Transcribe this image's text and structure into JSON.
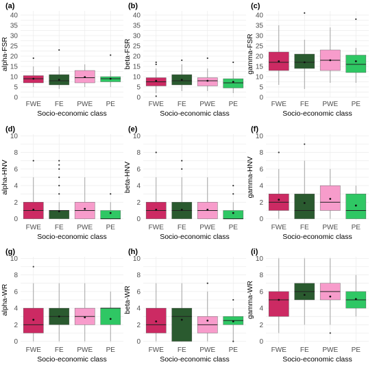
{
  "chart_data": [
    {
      "type": "box",
      "panel": "(a)",
      "ylabel": "alpha-FSR",
      "xlabel": "Socio-economic class",
      "ylim": [
        0,
        42
      ],
      "yticks": [
        0,
        5,
        10,
        15,
        20,
        25,
        30,
        35,
        40
      ],
      "categories": [
        "FWE",
        "FE",
        "PWE",
        "PE"
      ],
      "boxes": [
        {
          "min": 5,
          "q1": 7,
          "median": 9,
          "q3": 10.5,
          "max": 15,
          "mean": 9,
          "outliers": [
            19
          ]
        },
        {
          "min": 4,
          "q1": 6,
          "median": 8,
          "q3": 11,
          "max": 15,
          "mean": 8.5,
          "outliers": [
            23
          ]
        },
        {
          "min": 5,
          "q1": 7,
          "median": 9.5,
          "q3": 13,
          "max": 16,
          "mean": 9.8,
          "outliers": []
        },
        {
          "min": 5,
          "q1": 7.5,
          "median": 9,
          "q3": 10,
          "max": 13,
          "mean": 9,
          "outliers": [
            20.5
          ]
        }
      ]
    },
    {
      "type": "box",
      "panel": "(b)",
      "ylabel": "beta-FSR",
      "xlabel": "Socio-economic class",
      "ylim": [
        0,
        42
      ],
      "yticks": [
        0,
        5,
        10,
        15,
        20,
        25,
        30,
        35,
        40
      ],
      "categories": [
        "FWE",
        "FE",
        "PWE",
        "PE"
      ],
      "boxes": [
        {
          "min": 2,
          "q1": 5.5,
          "median": 7.5,
          "q3": 9.5,
          "max": 14,
          "mean": 8,
          "outliers": [
            0.5,
            16,
            17
          ]
        },
        {
          "min": 3,
          "q1": 6,
          "median": 8,
          "q3": 11,
          "max": 16,
          "mean": 8.5,
          "outliers": [
            18
          ]
        },
        {
          "min": 3,
          "q1": 5.5,
          "median": 8,
          "q3": 9.5,
          "max": 14,
          "mean": 8,
          "outliers": [
            19
          ]
        },
        {
          "min": 2,
          "q1": 4.5,
          "median": 7,
          "q3": 9,
          "max": 13,
          "mean": 7.5,
          "outliers": [
            17
          ]
        }
      ]
    },
    {
      "type": "box",
      "panel": "(c)",
      "ylabel": "gamma-FSR",
      "xlabel": "Socio-economic class",
      "ylim": [
        0,
        42
      ],
      "yticks": [
        0,
        5,
        10,
        15,
        20,
        25,
        30,
        35,
        40
      ],
      "categories": [
        "FWE",
        "FE",
        "PWE",
        "PE"
      ],
      "boxes": [
        {
          "min": 6,
          "q1": 13,
          "median": 17,
          "q3": 22,
          "max": 35,
          "mean": 17.5,
          "outliers": []
        },
        {
          "min": 4,
          "q1": 14,
          "median": 17,
          "q3": 21,
          "max": 28,
          "mean": 17,
          "outliers": [
            41
          ]
        },
        {
          "min": 7,
          "q1": 13,
          "median": 18,
          "q3": 23,
          "max": 34,
          "mean": 18,
          "outliers": []
        },
        {
          "min": 7,
          "q1": 12,
          "median": 16,
          "q3": 20.5,
          "max": 24,
          "mean": 17.5,
          "outliers": [
            38
          ]
        }
      ]
    },
    {
      "type": "box",
      "panel": "(d)",
      "ylabel": "alpha-HNV",
      "xlabel": "Socio-economic class",
      "ylim": [
        -0.2,
        10.2
      ],
      "yticks": [
        0,
        2,
        4,
        6,
        8,
        10
      ],
      "categories": [
        "FWE",
        "FE",
        "PWE",
        "PE"
      ],
      "boxes": [
        {
          "min": 0,
          "q1": 0,
          "median": 1,
          "q3": 2,
          "max": 5,
          "mean": 1.1,
          "outliers": [
            7
          ]
        },
        {
          "min": 0,
          "q1": 0,
          "median": 1,
          "q3": 1,
          "max": 2,
          "mean": 0.9,
          "outliers": [
            3,
            4,
            5,
            6,
            6.5,
            7
          ]
        },
        {
          "min": 0,
          "q1": 0,
          "median": 1,
          "q3": 2,
          "max": 5,
          "mean": 1.2,
          "outliers": []
        },
        {
          "min": 0,
          "q1": 0,
          "median": 0,
          "q3": 1,
          "max": 2,
          "mean": 0.7,
          "outliers": [
            3
          ]
        }
      ]
    },
    {
      "type": "box",
      "panel": "(e)",
      "ylabel": "beta-HNV",
      "xlabel": "Socio-economic class",
      "ylim": [
        -0.2,
        10.2
      ],
      "yticks": [
        0,
        2,
        4,
        6,
        8,
        10
      ],
      "categories": [
        "FWE",
        "FE",
        "PWE",
        "PE"
      ],
      "boxes": [
        {
          "min": 0,
          "q1": 0,
          "median": 1,
          "q3": 2,
          "max": 5,
          "mean": 1.1,
          "outliers": [
            8
          ]
        },
        {
          "min": 0,
          "q1": 0,
          "median": 1,
          "q3": 2,
          "max": 5,
          "mean": 1.1,
          "outliers": [
            6,
            7
          ]
        },
        {
          "min": 0,
          "q1": 0,
          "median": 1,
          "q3": 2,
          "max": 5,
          "mean": 1.1,
          "outliers": []
        },
        {
          "min": 0,
          "q1": 0,
          "median": 0,
          "q3": 1,
          "max": 2,
          "mean": 0.7,
          "outliers": [
            3,
            4
          ]
        }
      ]
    },
    {
      "type": "box",
      "panel": "(f)",
      "ylabel": "gamma-HNV",
      "xlabel": "Socio-economic class",
      "ylim": [
        -0.2,
        10.2
      ],
      "yticks": [
        0,
        2,
        4,
        6,
        8,
        10
      ],
      "categories": [
        "FWE",
        "FE",
        "PWE",
        "PE"
      ],
      "boxes": [
        {
          "min": 0,
          "q1": 1,
          "median": 2,
          "q3": 3,
          "max": 6,
          "mean": 2.3,
          "outliers": [
            8
          ]
        },
        {
          "min": 0,
          "q1": 0,
          "median": 1,
          "q3": 3,
          "max": 7,
          "mean": 1.9,
          "outliers": [
            9
          ]
        },
        {
          "min": 0,
          "q1": 1,
          "median": 2,
          "q3": 4,
          "max": 6,
          "mean": 2.4,
          "outliers": []
        },
        {
          "min": 0,
          "q1": 0,
          "median": 1,
          "q3": 3,
          "max": 4,
          "mean": 1.6,
          "outliers": []
        }
      ]
    },
    {
      "type": "box",
      "panel": "(g)",
      "ylabel": "alpha-WR",
      "xlabel": "Socio-economic class",
      "ylim": [
        -0.2,
        10.2
      ],
      "yticks": [
        0,
        2,
        4,
        6,
        8,
        10
      ],
      "categories": [
        "FWE",
        "FE",
        "PWE",
        "PE"
      ],
      "boxes": [
        {
          "min": 0,
          "q1": 1,
          "median": 2,
          "q3": 4,
          "max": 7,
          "mean": 2.6,
          "outliers": [
            9
          ]
        },
        {
          "min": 0,
          "q1": 2,
          "median": 3,
          "q3": 4,
          "max": 7,
          "mean": 3,
          "outliers": []
        },
        {
          "min": 0,
          "q1": 2,
          "median": 3,
          "q3": 4,
          "max": 7,
          "mean": 2.9,
          "outliers": []
        },
        {
          "min": 0,
          "q1": 2,
          "median": 4,
          "q3": 4,
          "max": 6,
          "mean": 2.7,
          "outliers": []
        }
      ]
    },
    {
      "type": "box",
      "panel": "(h)",
      "ylabel": "beta-WR",
      "xlabel": "Socio-economic class",
      "ylim": [
        -0.2,
        10.2
      ],
      "yticks": [
        0,
        2,
        4,
        6,
        8,
        10
      ],
      "categories": [
        "FWE",
        "FE",
        "PWE",
        "PE"
      ],
      "boxes": [
        {
          "min": 0,
          "q1": 1,
          "median": 2,
          "q3": 4,
          "max": 7,
          "mean": 2.4,
          "outliers": []
        },
        {
          "min": 0,
          "q1": 0,
          "median": 3,
          "q3": 4,
          "max": 7,
          "mean": 2.6,
          "outliers": []
        },
        {
          "min": 0,
          "q1": 1,
          "median": 2,
          "q3": 3,
          "max": 6,
          "mean": 2.5,
          "outliers": [
            7
          ]
        },
        {
          "min": 0,
          "q1": 2,
          "median": 2.5,
          "q3": 3,
          "max": 4,
          "mean": 2.4,
          "outliers": [
            0,
            5
          ]
        }
      ]
    },
    {
      "type": "box",
      "panel": "(i)",
      "ylabel": "gamma-WR",
      "xlabel": "Socio-economic class",
      "ylim": [
        -0.2,
        10.2
      ],
      "yticks": [
        0,
        2,
        4,
        6,
        8,
        10
      ],
      "categories": [
        "FWE",
        "FE",
        "PWE",
        "PE"
      ],
      "boxes": [
        {
          "min": 1,
          "q1": 3,
          "median": 5,
          "q3": 6,
          "max": 10,
          "mean": 5,
          "outliers": []
        },
        {
          "min": 2,
          "q1": 5,
          "median": 6,
          "q3": 7,
          "max": 10,
          "mean": 5.6,
          "outliers": []
        },
        {
          "min": 2,
          "q1": 5,
          "median": 6,
          "q3": 7,
          "max": 10,
          "mean": 5.4,
          "outliers": [
            1
          ]
        },
        {
          "min": 3,
          "q1": 4,
          "median": 5,
          "q3": 6,
          "max": 8,
          "mean": 5.1,
          "outliers": []
        }
      ]
    }
  ],
  "colors": {
    "FWE": "#cc2a63",
    "FE": "#2a5a2f",
    "PWE": "#f79ccb",
    "PE": "#2fc764",
    "median": "#222222",
    "whisker": "#9a9a9a",
    "grid": "#ebebeb"
  }
}
